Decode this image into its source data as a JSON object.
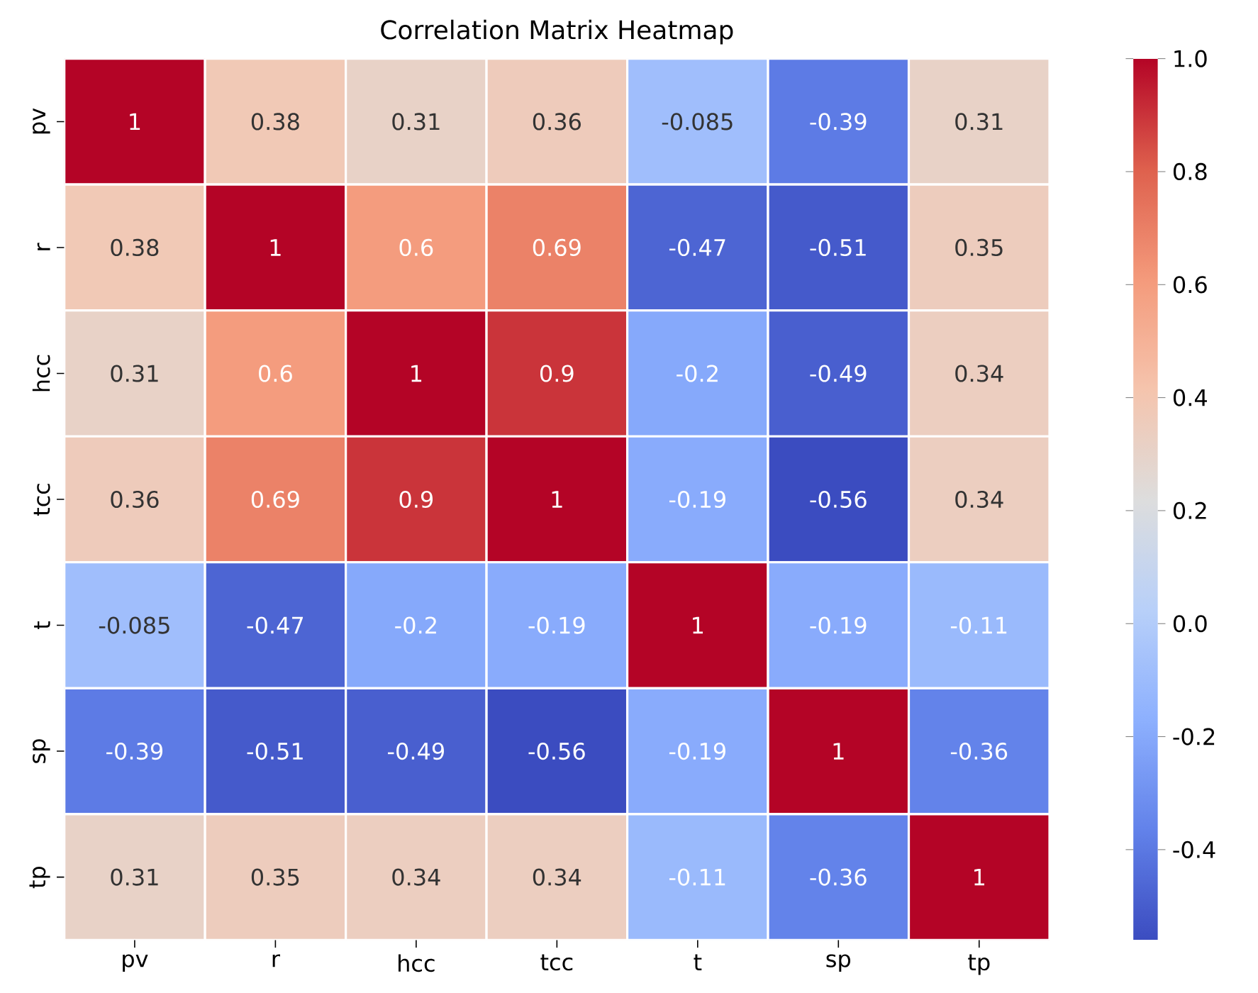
{
  "chart_data": {
    "type": "heatmap",
    "title": "Correlation Matrix Heatmap",
    "categories": [
      "pv",
      "r",
      "hcc",
      "tcc",
      "t",
      "sp",
      "tp"
    ],
    "y_categories": [
      "pv",
      "r",
      "hcc",
      "tcc",
      "t",
      "sp",
      "tp"
    ],
    "cells": [
      [
        1,
        0.38,
        0.31,
        0.36,
        -0.085,
        -0.39,
        0.31
      ],
      [
        0.38,
        1,
        0.6,
        0.69,
        -0.47,
        -0.51,
        0.35
      ],
      [
        0.31,
        0.6,
        1,
        0.9,
        -0.2,
        -0.49,
        0.34
      ],
      [
        0.36,
        0.69,
        0.9,
        1,
        -0.19,
        -0.56,
        0.34
      ],
      [
        -0.085,
        -0.47,
        -0.2,
        -0.19,
        1,
        -0.19,
        -0.11
      ],
      [
        -0.39,
        -0.51,
        -0.49,
        -0.56,
        -0.19,
        1,
        -0.36
      ],
      [
        0.31,
        0.35,
        0.34,
        0.34,
        -0.11,
        -0.36,
        1
      ]
    ],
    "clim": [
      -0.56,
      1.0
    ],
    "cticks": [
      -0.4,
      -0.2,
      {
        "value": 0,
        "label": "0.0"
      },
      0.2,
      0.4,
      0.6,
      0.8,
      {
        "value": 1,
        "label": "1.0"
      }
    ],
    "data_labels": true
  }
}
